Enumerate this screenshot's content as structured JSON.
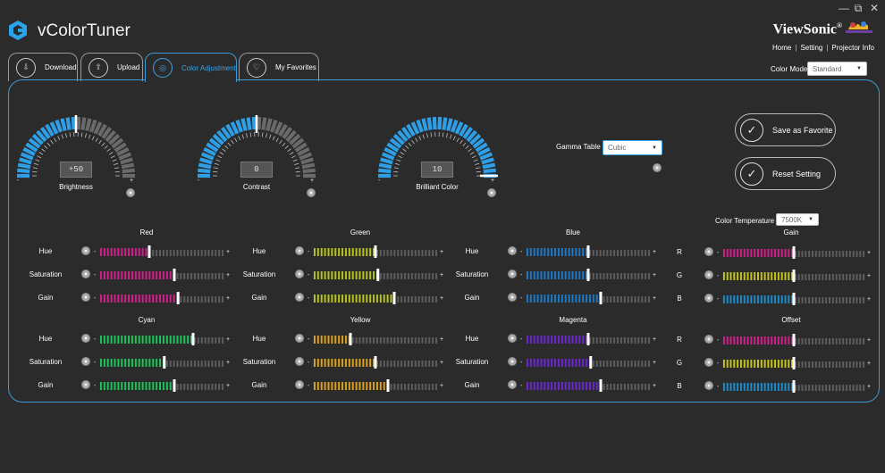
{
  "app": {
    "title": "vColorTuner",
    "brand": "ViewSonic",
    "brand_mark": "®"
  },
  "window": {
    "min": "—",
    "restore": "⧉",
    "close": "✕"
  },
  "toplinks": [
    "Home",
    "Setting",
    "Projector Info"
  ],
  "color_mode": {
    "label": "Color Mode",
    "value": "Standard"
  },
  "tabs": [
    {
      "label": "Download",
      "icon": "download-icon"
    },
    {
      "label": "Upload",
      "icon": "upload-icon"
    },
    {
      "label": "Color Adjustment",
      "icon": "color-adjustment-icon"
    },
    {
      "label": "My Favorites",
      "icon": "favorites-icon"
    }
  ],
  "gauges": [
    {
      "label": "Brightness",
      "value": "+50",
      "level": 0.5
    },
    {
      "label": "Contrast",
      "value": "0",
      "level": 0.5
    },
    {
      "label": "Brilliant Color",
      "value": "10",
      "level": 1.0
    }
  ],
  "gamma": {
    "label": "Gamma Table",
    "value": "Cubic"
  },
  "buttons": {
    "save_favorite": "Save as Favorite",
    "reset_setting": "Reset Setting"
  },
  "color_temperature": {
    "label": "Color Temperature",
    "value": "7500K"
  },
  "minus": "-",
  "plus": "+",
  "colors": {
    "Red": "#d0208a",
    "Green": "#b5c21e",
    "Blue": "#1e78c8",
    "Cyan": "#1ec25a",
    "Yellow": "#d8a01e",
    "Magenta": "#6a28d0",
    "R": "#d0208a",
    "G": "#c2c21e",
    "B": "#1e8ac8"
  },
  "hsg_groups": [
    {
      "name": "Red",
      "rows": [
        {
          "label": "Hue",
          "value": 0.4
        },
        {
          "label": "Saturation",
          "value": 0.6
        },
        {
          "label": "Gain",
          "value": 0.63
        }
      ]
    },
    {
      "name": "Green",
      "rows": [
        {
          "label": "Hue",
          "value": 0.5
        },
        {
          "label": "Saturation",
          "value": 0.52
        },
        {
          "label": "Gain",
          "value": 0.65
        }
      ]
    },
    {
      "name": "Blue",
      "rows": [
        {
          "label": "Hue",
          "value": 0.5
        },
        {
          "label": "Saturation",
          "value": 0.5
        },
        {
          "label": "Gain",
          "value": 0.6
        }
      ]
    },
    {
      "name": "Cyan",
      "rows": [
        {
          "label": "Hue",
          "value": 0.75
        },
        {
          "label": "Saturation",
          "value": 0.52
        },
        {
          "label": "Gain",
          "value": 0.6
        }
      ]
    },
    {
      "name": "Yellow",
      "rows": [
        {
          "label": "Hue",
          "value": 0.3
        },
        {
          "label": "Saturation",
          "value": 0.5
        },
        {
          "label": "Gain",
          "value": 0.6
        }
      ]
    },
    {
      "name": "Magenta",
      "rows": [
        {
          "label": "Hue",
          "value": 0.5
        },
        {
          "label": "Saturation",
          "value": 0.52
        },
        {
          "label": "Gain",
          "value": 0.6
        }
      ]
    }
  ],
  "rgb_groups": [
    {
      "name": "Gain",
      "rows": [
        {
          "label": "R",
          "value": 0.5
        },
        {
          "label": "G",
          "value": 0.5
        },
        {
          "label": "B",
          "value": 0.5
        }
      ]
    },
    {
      "name": "Offset",
      "rows": [
        {
          "label": "R",
          "value": 0.5
        },
        {
          "label": "G",
          "value": 0.5
        },
        {
          "label": "B",
          "value": 0.5
        }
      ]
    }
  ]
}
